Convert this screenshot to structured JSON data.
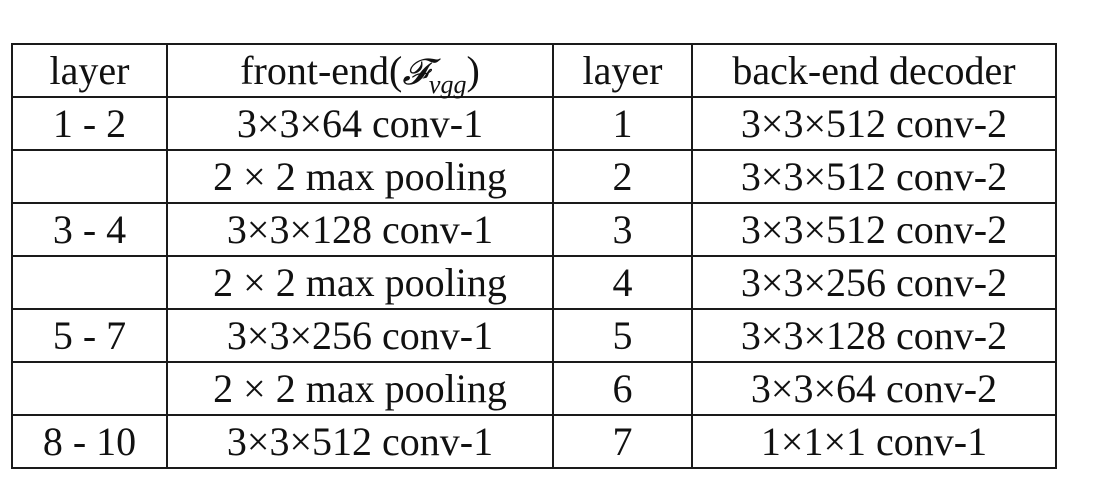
{
  "table": {
    "header": {
      "layer_left": "layer",
      "front_end_prefix": "front-end(",
      "front_end_symbol": "𝓕",
      "front_end_subscript": "vgg",
      "front_end_suffix": ")",
      "layer_right": "layer",
      "back_end": "back-end decoder"
    },
    "rows": [
      {
        "fe_layer": "1 - 2",
        "fe_op": "3×3×64 conv-1",
        "be_layer": "1",
        "be_op": "3×3×512 conv-2"
      },
      {
        "fe_layer": "",
        "fe_op": "2 × 2 max pooling",
        "be_layer": "2",
        "be_op": "3×3×512 conv-2"
      },
      {
        "fe_layer": "3 - 4",
        "fe_op": "3×3×128 conv-1",
        "be_layer": "3",
        "be_op": "3×3×512 conv-2"
      },
      {
        "fe_layer": "",
        "fe_op": "2 × 2 max pooling",
        "be_layer": "4",
        "be_op": "3×3×256 conv-2"
      },
      {
        "fe_layer": "5 - 7",
        "fe_op": "3×3×256 conv-1",
        "be_layer": "5",
        "be_op": "3×3×128 conv-2"
      },
      {
        "fe_layer": "",
        "fe_op": "2 × 2 max pooling",
        "be_layer": "6",
        "be_op": "3×3×64 conv-2"
      },
      {
        "fe_layer": "8 - 10",
        "fe_op": "3×3×512 conv-1",
        "be_layer": "7",
        "be_op": "1×1×1 conv-1"
      }
    ]
  }
}
